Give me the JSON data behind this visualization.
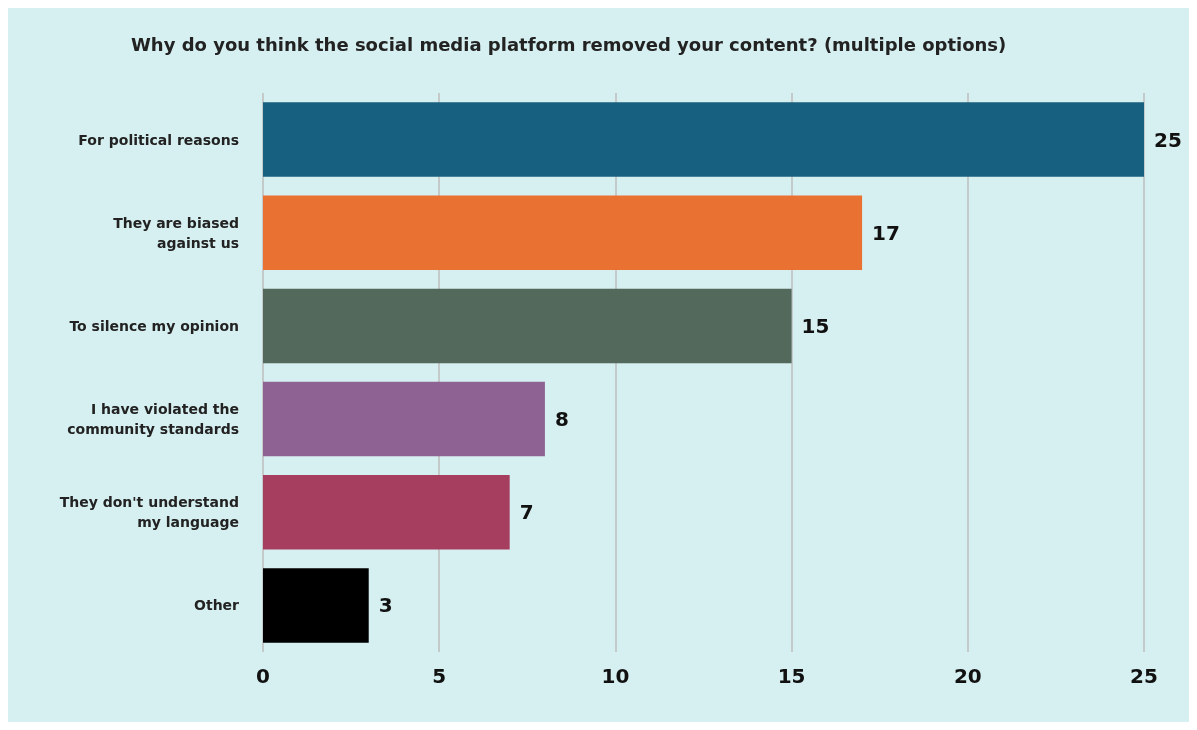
{
  "chart_data": {
    "type": "bar",
    "orientation": "horizontal",
    "title": "Why do you think the social media platform removed your content? (multiple options)",
    "categories": [
      "For political reasons",
      "They are biased\nagainst us",
      "To silence my opinion",
      "I have violated the\ncommunity standards",
      "They don't understand\nmy language",
      "Other"
    ],
    "values": [
      25,
      17,
      15,
      8,
      7,
      3
    ],
    "colors": [
      "#17607f",
      "#e97132",
      "#52695c",
      "#8f6294",
      "#a63e5f",
      "#000000"
    ],
    "xlim": [
      0,
      25
    ],
    "xticks": [
      0,
      5,
      10,
      15,
      20,
      25
    ],
    "grid": "x",
    "data_labels": true
  }
}
